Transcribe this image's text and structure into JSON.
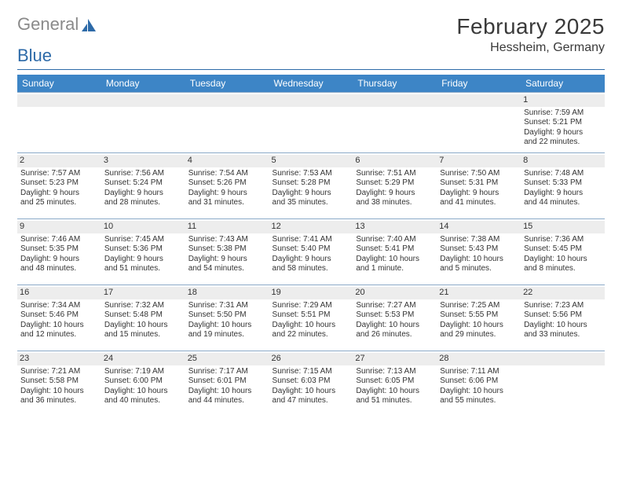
{
  "logo": {
    "word1": "General",
    "word2": "Blue"
  },
  "title": "February 2025",
  "location": "Hessheim, Germany",
  "colors": {
    "header_bg": "#3d85c6",
    "header_text": "#ffffff",
    "grid_line": "#8aa9c7",
    "daynum_bg": "#ededed",
    "text": "#333333",
    "logo_gray": "#8a8a8a",
    "logo_blue": "#2d6aa8"
  },
  "dayHeaders": [
    "Sunday",
    "Monday",
    "Tuesday",
    "Wednesday",
    "Thursday",
    "Friday",
    "Saturday"
  ],
  "weeks": [
    [
      {
        "n": "",
        "lines": []
      },
      {
        "n": "",
        "lines": []
      },
      {
        "n": "",
        "lines": []
      },
      {
        "n": "",
        "lines": []
      },
      {
        "n": "",
        "lines": []
      },
      {
        "n": "",
        "lines": []
      },
      {
        "n": "1",
        "lines": [
          "Sunrise: 7:59 AM",
          "Sunset: 5:21 PM",
          "Daylight: 9 hours",
          "and 22 minutes."
        ]
      }
    ],
    [
      {
        "n": "2",
        "lines": [
          "Sunrise: 7:57 AM",
          "Sunset: 5:23 PM",
          "Daylight: 9 hours",
          "and 25 minutes."
        ]
      },
      {
        "n": "3",
        "lines": [
          "Sunrise: 7:56 AM",
          "Sunset: 5:24 PM",
          "Daylight: 9 hours",
          "and 28 minutes."
        ]
      },
      {
        "n": "4",
        "lines": [
          "Sunrise: 7:54 AM",
          "Sunset: 5:26 PM",
          "Daylight: 9 hours",
          "and 31 minutes."
        ]
      },
      {
        "n": "5",
        "lines": [
          "Sunrise: 7:53 AM",
          "Sunset: 5:28 PM",
          "Daylight: 9 hours",
          "and 35 minutes."
        ]
      },
      {
        "n": "6",
        "lines": [
          "Sunrise: 7:51 AM",
          "Sunset: 5:29 PM",
          "Daylight: 9 hours",
          "and 38 minutes."
        ]
      },
      {
        "n": "7",
        "lines": [
          "Sunrise: 7:50 AM",
          "Sunset: 5:31 PM",
          "Daylight: 9 hours",
          "and 41 minutes."
        ]
      },
      {
        "n": "8",
        "lines": [
          "Sunrise: 7:48 AM",
          "Sunset: 5:33 PM",
          "Daylight: 9 hours",
          "and 44 minutes."
        ]
      }
    ],
    [
      {
        "n": "9",
        "lines": [
          "Sunrise: 7:46 AM",
          "Sunset: 5:35 PM",
          "Daylight: 9 hours",
          "and 48 minutes."
        ]
      },
      {
        "n": "10",
        "lines": [
          "Sunrise: 7:45 AM",
          "Sunset: 5:36 PM",
          "Daylight: 9 hours",
          "and 51 minutes."
        ]
      },
      {
        "n": "11",
        "lines": [
          "Sunrise: 7:43 AM",
          "Sunset: 5:38 PM",
          "Daylight: 9 hours",
          "and 54 minutes."
        ]
      },
      {
        "n": "12",
        "lines": [
          "Sunrise: 7:41 AM",
          "Sunset: 5:40 PM",
          "Daylight: 9 hours",
          "and 58 minutes."
        ]
      },
      {
        "n": "13",
        "lines": [
          "Sunrise: 7:40 AM",
          "Sunset: 5:41 PM",
          "Daylight: 10 hours",
          "and 1 minute."
        ]
      },
      {
        "n": "14",
        "lines": [
          "Sunrise: 7:38 AM",
          "Sunset: 5:43 PM",
          "Daylight: 10 hours",
          "and 5 minutes."
        ]
      },
      {
        "n": "15",
        "lines": [
          "Sunrise: 7:36 AM",
          "Sunset: 5:45 PM",
          "Daylight: 10 hours",
          "and 8 minutes."
        ]
      }
    ],
    [
      {
        "n": "16",
        "lines": [
          "Sunrise: 7:34 AM",
          "Sunset: 5:46 PM",
          "Daylight: 10 hours",
          "and 12 minutes."
        ]
      },
      {
        "n": "17",
        "lines": [
          "Sunrise: 7:32 AM",
          "Sunset: 5:48 PM",
          "Daylight: 10 hours",
          "and 15 minutes."
        ]
      },
      {
        "n": "18",
        "lines": [
          "Sunrise: 7:31 AM",
          "Sunset: 5:50 PM",
          "Daylight: 10 hours",
          "and 19 minutes."
        ]
      },
      {
        "n": "19",
        "lines": [
          "Sunrise: 7:29 AM",
          "Sunset: 5:51 PM",
          "Daylight: 10 hours",
          "and 22 minutes."
        ]
      },
      {
        "n": "20",
        "lines": [
          "Sunrise: 7:27 AM",
          "Sunset: 5:53 PM",
          "Daylight: 10 hours",
          "and 26 minutes."
        ]
      },
      {
        "n": "21",
        "lines": [
          "Sunrise: 7:25 AM",
          "Sunset: 5:55 PM",
          "Daylight: 10 hours",
          "and 29 minutes."
        ]
      },
      {
        "n": "22",
        "lines": [
          "Sunrise: 7:23 AM",
          "Sunset: 5:56 PM",
          "Daylight: 10 hours",
          "and 33 minutes."
        ]
      }
    ],
    [
      {
        "n": "23",
        "lines": [
          "Sunrise: 7:21 AM",
          "Sunset: 5:58 PM",
          "Daylight: 10 hours",
          "and 36 minutes."
        ]
      },
      {
        "n": "24",
        "lines": [
          "Sunrise: 7:19 AM",
          "Sunset: 6:00 PM",
          "Daylight: 10 hours",
          "and 40 minutes."
        ]
      },
      {
        "n": "25",
        "lines": [
          "Sunrise: 7:17 AM",
          "Sunset: 6:01 PM",
          "Daylight: 10 hours",
          "and 44 minutes."
        ]
      },
      {
        "n": "26",
        "lines": [
          "Sunrise: 7:15 AM",
          "Sunset: 6:03 PM",
          "Daylight: 10 hours",
          "and 47 minutes."
        ]
      },
      {
        "n": "27",
        "lines": [
          "Sunrise: 7:13 AM",
          "Sunset: 6:05 PM",
          "Daylight: 10 hours",
          "and 51 minutes."
        ]
      },
      {
        "n": "28",
        "lines": [
          "Sunrise: 7:11 AM",
          "Sunset: 6:06 PM",
          "Daylight: 10 hours",
          "and 55 minutes."
        ]
      },
      {
        "n": "",
        "lines": []
      }
    ]
  ]
}
